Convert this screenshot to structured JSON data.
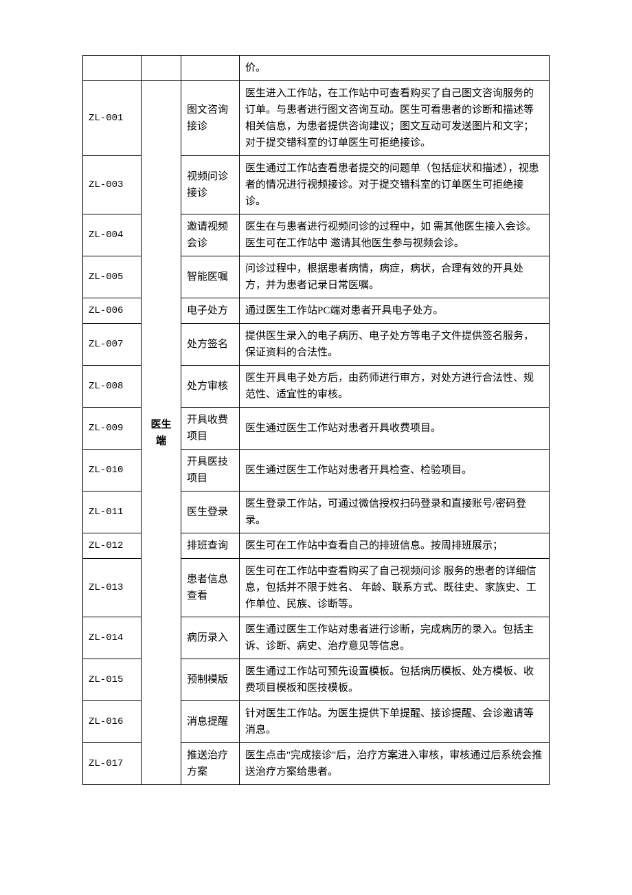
{
  "header_row": {
    "code": "",
    "category": "",
    "name": "",
    "desc": "价。"
  },
  "category_label": "医生端",
  "rows": [
    {
      "code": "ZL-001",
      "name": "图文咨询接诊",
      "desc": "医生进入工作站，在工作站中可查看购买了自己图文咨询服务的订单。与患者进行图文咨询互动。医生可看患者的诊断和描述等相关信息，为患者提供咨询建议；图文互动可发送图片和文字；对于提交错科室的订单医生可拒绝接诊。"
    },
    {
      "code": "ZL-003",
      "name": "视频问诊接诊",
      "desc": "医生通过工作站查看患者提交的问题单（包括症状和描述），视患者的情况进行视频接诊。对于提交错科室的订单医生可拒绝接诊。"
    },
    {
      "code": "ZL-004",
      "name": "邀请视频会诊",
      "desc": "医生在与患者进行视频问诊的过程中，如 需其他医生接入会诊。医生可在工作站中 邀请其他医生参与视频会诊。"
    },
    {
      "code": "ZL-005",
      "name": "智能医嘱",
      "desc": "问诊过程中，根据患者病情，病症，病状，合理有效的开具处方，并为患者记录日常医嘱。"
    },
    {
      "code": "ZL-006",
      "name": "电子处方",
      "desc": "通过医生工作站PC端对患者开具电子处方。"
    },
    {
      "code": "ZL-007",
      "name": "处方签名",
      "desc": "提供医生录入的电子病历、电子处方等电子文件提供签名服务，保证资料的合法性。"
    },
    {
      "code": "ZL-008",
      "name": "处方审核",
      "desc": "医生开具电子处方后，由药师进行审方，对处方进行合法性、规范性、适宜性的审核。"
    },
    {
      "code": "ZL-009",
      "name": "开具收费项目",
      "desc": "医生通过医生工作站对患者开具收费项目。"
    },
    {
      "code": "ZL-010",
      "name": "开具医技项目",
      "desc": "医生通过医生工作站对患者开具检查、检验项目。"
    },
    {
      "code": "ZL-011",
      "name": "医生登录",
      "desc": "医生登录工作站，可通过微信授权扫码登录和直接账号/密码登录。"
    },
    {
      "code": "ZL-012",
      "name": "排班查询",
      "desc": "医生可在工作站中查看自己的排班信息。按周排班展示；"
    },
    {
      "code": "ZL-013",
      "name": "患者信息查看",
      "desc": "医生可在工作站中查看购买了自己视频问诊 服务的患者的详细信息，包括并不限于姓名、 年龄、联系方式、既往史、家族史、工作单位、民族、诊断等。"
    },
    {
      "code": "ZL-014",
      "name": "病历录入",
      "desc": "医生通过医生工作站对患者进行诊断，完成病历的录入。包括主诉、诊断、病史、治疗意见等信息。"
    },
    {
      "code": "ZL-015",
      "name": "预制模版",
      "desc": "医生通过工作站可预先设置模板。包括病历模板、处方模板、收费项目模板和医技模板。"
    },
    {
      "code": "ZL-016",
      "name": "消息提醒",
      "desc": "针对医生工作站。为医生提供下单提醒、接诊提醒、会诊邀请等消息。"
    },
    {
      "code": "ZL-017",
      "name": "推送治疗方案",
      "desc": "医生点击\"完成接诊\"后，治疗方案进入审核，审核通过后系统会推送治疗方案给患者。"
    }
  ]
}
